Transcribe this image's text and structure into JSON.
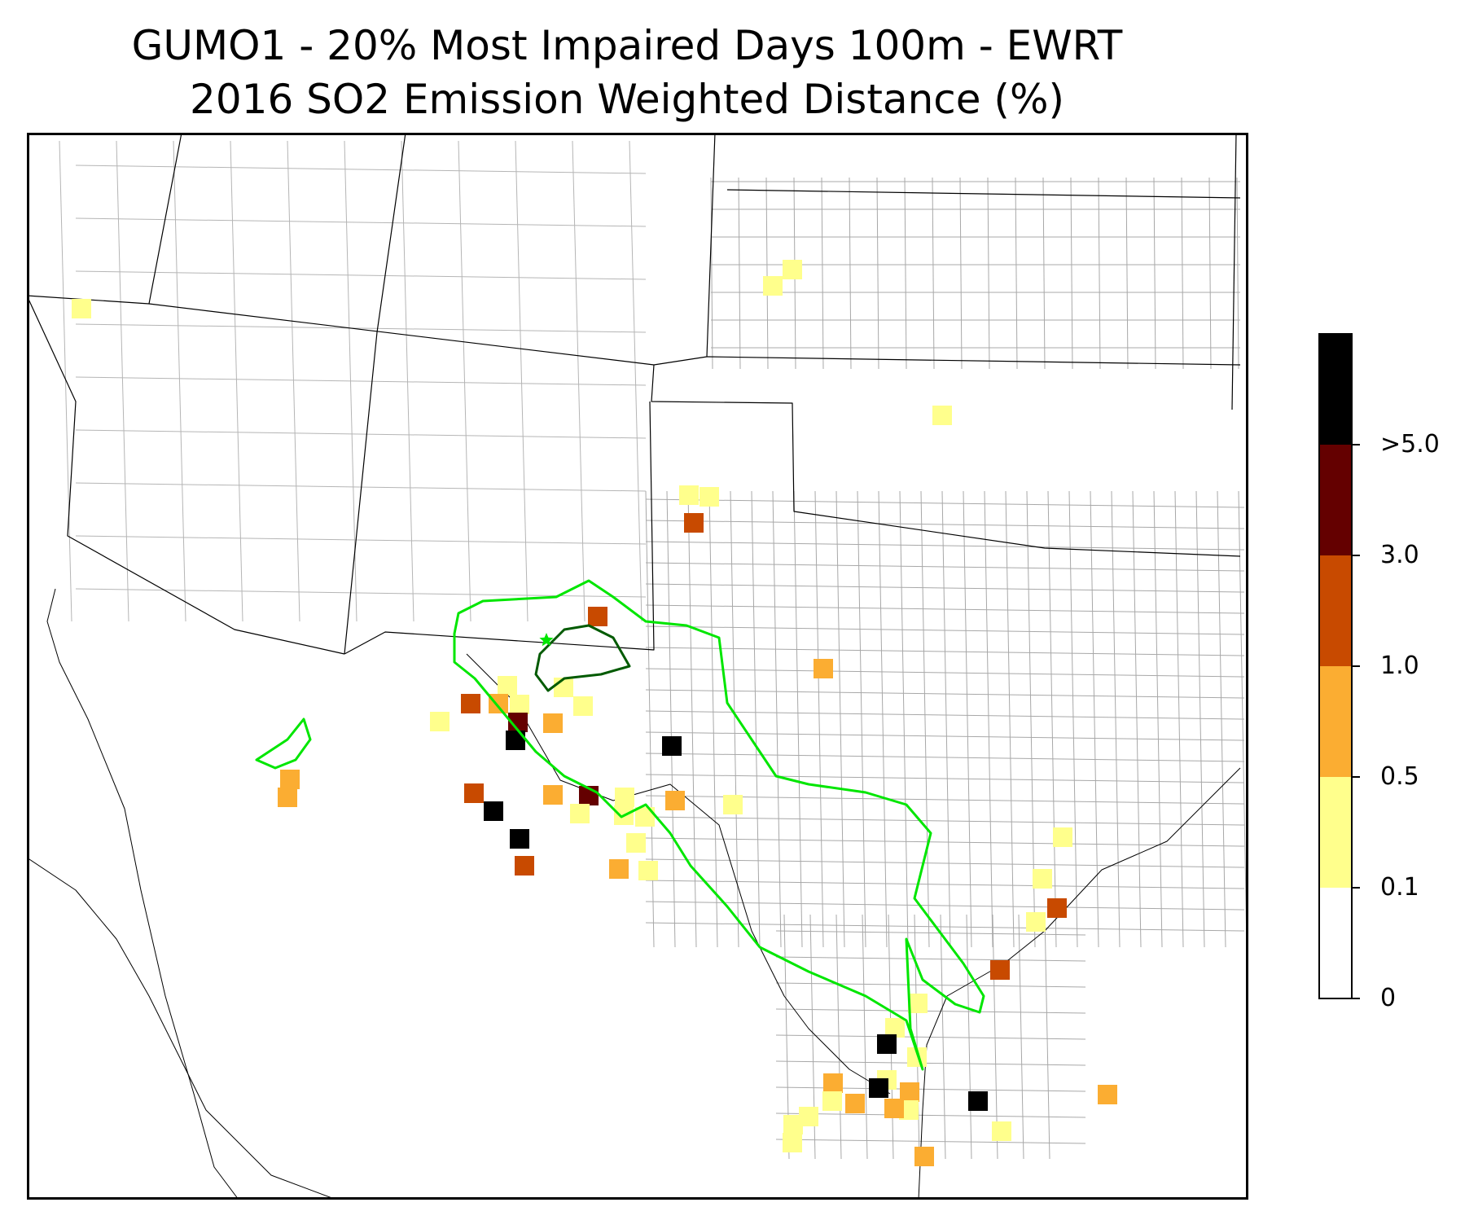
{
  "title": {
    "line1": "GUMO1 - 20% Most Impaired Days 100m - EWRT",
    "line2": "2016 SO2 Emission Weighted Distance (%)"
  },
  "colorbar": {
    "ticks": [
      "0",
      "0.1",
      "0.5",
      "1.0",
      "3.0",
      ">5.0"
    ],
    "colors": [
      "#ffffff",
      "#ffff8c",
      "#fbad32",
      "#c84a00",
      "#640000",
      "#000000"
    ]
  },
  "map": {
    "region": "Southwest United States (AZ, NM, TX, OK, CO, KS, UT)",
    "receptor": "GUMO1",
    "receptor_marker": "star",
    "contour_colors": {
      "outer": "#00e600",
      "inner": "#005a00"
    },
    "cells": [
      {
        "lat": 37.9,
        "lon": -99.6,
        "bin": 1
      },
      {
        "lat": 37.7,
        "lon": -99.9,
        "bin": 1
      },
      {
        "lat": 37.7,
        "lon": -110.9,
        "bin": 1
      },
      {
        "lat": 36.5,
        "lon": -97.2,
        "bin": 1
      },
      {
        "lat": 35.3,
        "lon": -101.0,
        "bin": 1
      },
      {
        "lat": 35.3,
        "lon": -100.7,
        "bin": 1
      },
      {
        "lat": 35.0,
        "lon": -100.9,
        "bin": 3
      },
      {
        "lat": 34.2,
        "lon": -113.0,
        "bin": 1
      },
      {
        "lat": 34.0,
        "lon": -111.8,
        "bin": 1
      },
      {
        "lat": 33.8,
        "lon": -111.8,
        "bin": 3
      },
      {
        "lat": 33.9,
        "lon": -102.2,
        "bin": 3
      },
      {
        "lat": 33.5,
        "lon": -98.9,
        "bin": 2
      },
      {
        "lat": 33.1,
        "lon": -103.4,
        "bin": 1
      },
      {
        "lat": 33.1,
        "lon": -102.6,
        "bin": 1
      },
      {
        "lat": 32.9,
        "lon": -103.9,
        "bin": 3
      },
      {
        "lat": 32.9,
        "lon": -103.5,
        "bin": 2
      },
      {
        "lat": 32.9,
        "lon": -103.2,
        "bin": 1
      },
      {
        "lat": 32.9,
        "lon": -102.3,
        "bin": 1
      },
      {
        "lat": 32.7,
        "lon": -103.2,
        "bin": 4
      },
      {
        "lat": 32.7,
        "lon": -102.7,
        "bin": 2
      },
      {
        "lat": 32.7,
        "lon": -104.3,
        "bin": 1
      },
      {
        "lat": 32.4,
        "lon": -111.0,
        "bin": 1
      },
      {
        "lat": 32.5,
        "lon": -103.2,
        "bin": 5
      },
      {
        "lat": 32.5,
        "lon": -101.0,
        "bin": 5
      },
      {
        "lat": 32.1,
        "lon": -106.3,
        "bin": 2
      },
      {
        "lat": 31.9,
        "lon": -106.3,
        "bin": 2
      },
      {
        "lat": 31.9,
        "lon": -103.7,
        "bin": 3
      },
      {
        "lat": 31.9,
        "lon": -102.6,
        "bin": 2
      },
      {
        "lat": 31.9,
        "lon": -102.1,
        "bin": 4
      },
      {
        "lat": 31.9,
        "lon": -101.6,
        "bin": 1
      },
      {
        "lat": 31.9,
        "lon": -100.9,
        "bin": 2
      },
      {
        "lat": 31.9,
        "lon": -100.1,
        "bin": 1
      },
      {
        "lat": 31.7,
        "lon": -103.4,
        "bin": 5
      },
      {
        "lat": 31.7,
        "lon": -101.6,
        "bin": 1
      },
      {
        "lat": 31.7,
        "lon": -101.3,
        "bin": 1
      },
      {
        "lat": 31.7,
        "lon": -102.2,
        "bin": 1
      },
      {
        "lat": 31.4,
        "lon": -103.0,
        "bin": 5
      },
      {
        "lat": 31.4,
        "lon": -101.4,
        "bin": 1
      },
      {
        "lat": 31.1,
        "lon": -102.9,
        "bin": 3
      },
      {
        "lat": 31.1,
        "lon": -101.6,
        "bin": 2
      },
      {
        "lat": 31.1,
        "lon": -101.2,
        "bin": 1
      },
      {
        "lat": 32.0,
        "lon": -95.5,
        "bin": 1
      },
      {
        "lat": 31.5,
        "lon": -95.8,
        "bin": 1
      },
      {
        "lat": 31.2,
        "lon": -95.6,
        "bin": 3
      },
      {
        "lat": 31.0,
        "lon": -95.9,
        "bin": 1
      },
      {
        "lat": 30.4,
        "lon": -96.4,
        "bin": 3
      },
      {
        "lat": 29.9,
        "lon": -97.5,
        "bin": 1
      },
      {
        "lat": 29.6,
        "lon": -97.8,
        "bin": 1
      },
      {
        "lat": 29.4,
        "lon": -97.9,
        "bin": 5
      },
      {
        "lat": 29.3,
        "lon": -97.5,
        "bin": 1
      },
      {
        "lat": 29.2,
        "lon": -95.0,
        "bin": 2
      },
      {
        "lat": 29.0,
        "lon": -97.9,
        "bin": 1
      },
      {
        "lat": 28.9,
        "lon": -98.6,
        "bin": 2
      },
      {
        "lat": 28.9,
        "lon": -98.0,
        "bin": 5
      },
      {
        "lat": 28.9,
        "lon": -97.6,
        "bin": 2
      },
      {
        "lat": 28.9,
        "lon": -96.7,
        "bin": 5
      },
      {
        "lat": 28.7,
        "lon": -97.6,
        "bin": 1
      },
      {
        "lat": 28.7,
        "lon": -98.3,
        "bin": 2
      },
      {
        "lat": 28.6,
        "lon": -96.4,
        "bin": 1
      },
      {
        "lat": 28.7,
        "lon": -97.8,
        "bin": 2
      },
      {
        "lat": 28.7,
        "lon": -98.6,
        "bin": 1
      },
      {
        "lat": 28.5,
        "lon": -98.9,
        "bin": 1
      },
      {
        "lat": 28.4,
        "lon": -99.1,
        "bin": 1
      },
      {
        "lat": 28.2,
        "lon": -99.1,
        "bin": 1
      },
      {
        "lat": 28.2,
        "lon": -97.4,
        "bin": 2
      }
    ]
  }
}
